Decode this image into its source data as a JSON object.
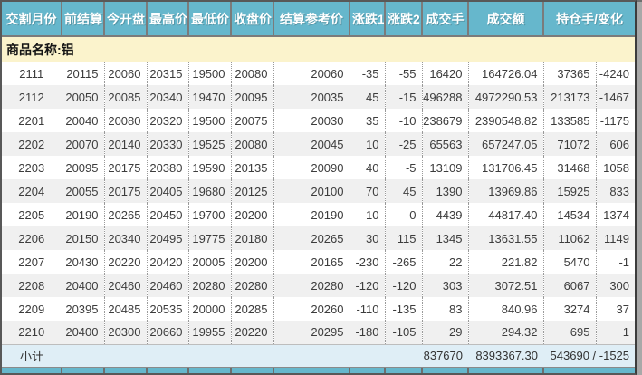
{
  "table": {
    "columns": [
      "交割月份",
      "前结算",
      "今开盘",
      "最高价",
      "最低价",
      "收盘价",
      "结算参考价",
      "涨跌1",
      "涨跌2",
      "成交手",
      "成交额",
      "持仓手/变化"
    ],
    "product_label": "商品名称:铝",
    "rows": [
      [
        "2111",
        "20115",
        "20060",
        "20315",
        "19500",
        "20080",
        "20060",
        "-35",
        "-55",
        "16420",
        "164726.04",
        "37365",
        "-4240"
      ],
      [
        "2112",
        "20050",
        "20085",
        "20340",
        "19470",
        "20095",
        "20035",
        "45",
        "-15",
        "496288",
        "4972290.53",
        "213173",
        "-1467"
      ],
      [
        "2201",
        "20040",
        "20080",
        "20320",
        "19500",
        "20075",
        "20030",
        "35",
        "-10",
        "238679",
        "2390548.82",
        "133585",
        "-1175"
      ],
      [
        "2202",
        "20070",
        "20140",
        "20330",
        "19525",
        "20080",
        "20045",
        "10",
        "-25",
        "65563",
        "657247.05",
        "71072",
        "606"
      ],
      [
        "2203",
        "20095",
        "20175",
        "20380",
        "19590",
        "20135",
        "20090",
        "40",
        "-5",
        "13109",
        "131706.45",
        "31468",
        "1058"
      ],
      [
        "2204",
        "20055",
        "20175",
        "20405",
        "19680",
        "20125",
        "20100",
        "70",
        "45",
        "1390",
        "13969.86",
        "15925",
        "833"
      ],
      [
        "2205",
        "20190",
        "20265",
        "20450",
        "19700",
        "20200",
        "20190",
        "10",
        "0",
        "4439",
        "44817.40",
        "14534",
        "1374"
      ],
      [
        "2206",
        "20150",
        "20340",
        "20495",
        "19775",
        "20180",
        "20265",
        "30",
        "115",
        "1345",
        "13631.55",
        "11062",
        "1149"
      ],
      [
        "2207",
        "20430",
        "20220",
        "20420",
        "20005",
        "20200",
        "20165",
        "-230",
        "-265",
        "22",
        "221.82",
        "5470",
        "-1"
      ],
      [
        "2208",
        "20400",
        "20460",
        "20460",
        "20280",
        "20280",
        "20280",
        "-120",
        "-120",
        "303",
        "3072.51",
        "6067",
        "300"
      ],
      [
        "2209",
        "20395",
        "20485",
        "20535",
        "20000",
        "20285",
        "20260",
        "-110",
        "-135",
        "83",
        "840.96",
        "3274",
        "37"
      ],
      [
        "2210",
        "20400",
        "20300",
        "20660",
        "19955",
        "20220",
        "20295",
        "-180",
        "-105",
        "29",
        "294.32",
        "695",
        "1"
      ]
    ],
    "subtotal": {
      "label": "小计",
      "volume": "837670",
      "turnover": "8393367.30",
      "oi_change": "543690 / -1525"
    }
  },
  "colors": {
    "header_bg": "#66B7CC",
    "header_separator": "#7b7b7b",
    "product_bg": "#FBF3CC",
    "row_alt": "#F0F0F0",
    "subtotal_bg": "#DFEEF6"
  }
}
